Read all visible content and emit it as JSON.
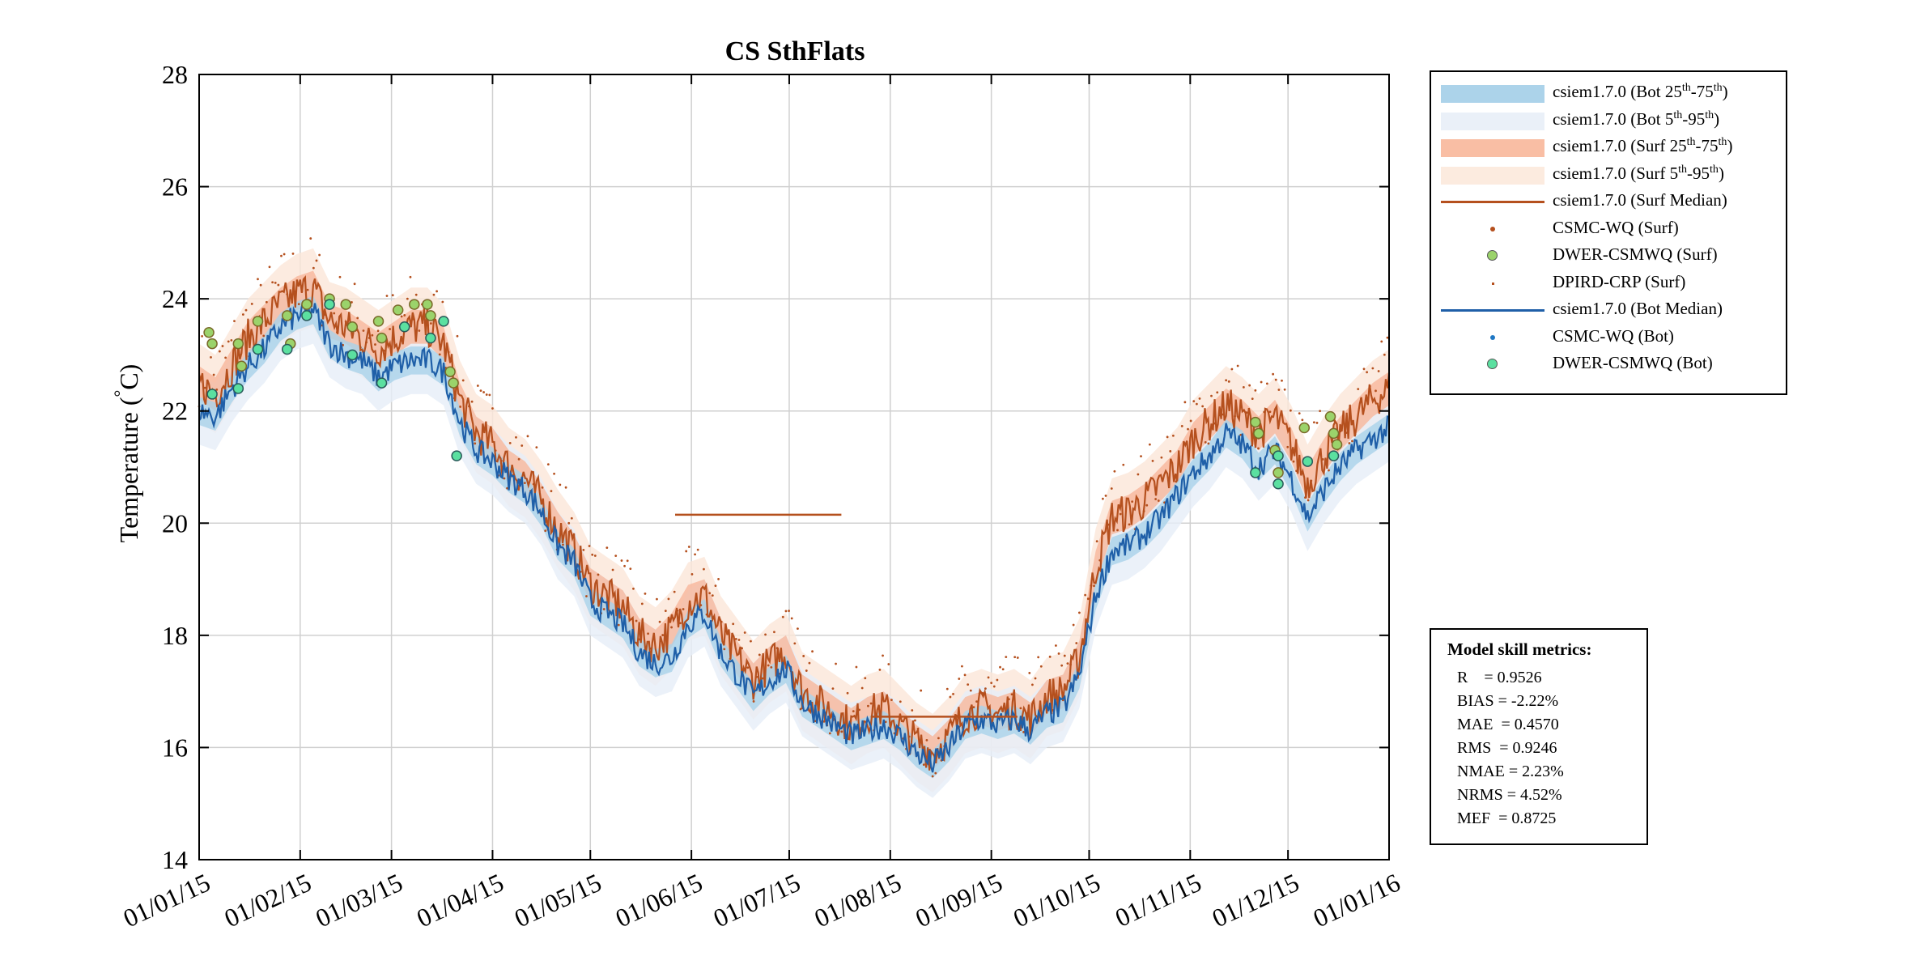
{
  "chart_data": {
    "type": "line",
    "title": "CS SthFlats",
    "xlabel": "",
    "ylabel": "Temperature (°C)",
    "ylabel_main": "Temperature (",
    "ylabel_deg": "°",
    "ylabel_unit": "C)",
    "ylim": [
      14,
      28
    ],
    "yticks": [
      "14",
      "16",
      "18",
      "20",
      "22",
      "24",
      "26",
      "28"
    ],
    "xticks": [
      "01/01/15",
      "01/02/15",
      "01/03/15",
      "01/04/15",
      "01/05/15",
      "01/06/15",
      "01/07/15",
      "01/08/15",
      "01/09/15",
      "01/10/15",
      "01/11/15",
      "01/12/15",
      "01/01/16"
    ],
    "grid": true,
    "month_days": [
      0,
      31,
      59,
      90,
      120,
      151,
      181,
      212,
      243,
      273,
      304,
      334,
      365
    ],
    "bottom_median": {
      "name": "csiem1.7.0 (Bot Median)",
      "color": "#1f5fa8",
      "days": [
        0,
        5,
        10,
        15,
        20,
        25,
        30,
        35,
        40,
        45,
        50,
        55,
        60,
        65,
        70,
        75,
        80,
        85,
        90,
        95,
        100,
        105,
        110,
        115,
        120,
        125,
        130,
        135,
        140,
        145,
        150,
        155,
        160,
        165,
        170,
        175,
        180,
        185,
        190,
        195,
        200,
        205,
        210,
        215,
        220,
        225,
        230,
        235,
        240,
        245,
        250,
        255,
        260,
        265,
        270,
        275,
        280,
        285,
        290,
        295,
        300,
        305,
        310,
        315,
        320,
        325,
        330,
        335,
        340,
        345,
        350,
        355,
        360,
        365
      ],
      "values": [
        22.0,
        21.9,
        22.4,
        22.8,
        23.1,
        23.5,
        23.7,
        23.8,
        23.2,
        23.0,
        22.9,
        22.6,
        22.8,
        22.9,
        22.9,
        22.7,
        21.8,
        21.3,
        21.1,
        20.8,
        20.6,
        20.2,
        19.6,
        19.3,
        18.6,
        18.4,
        18.2,
        17.7,
        17.5,
        17.6,
        18.2,
        18.4,
        17.7,
        17.3,
        16.9,
        17.2,
        17.4,
        16.8,
        16.6,
        16.4,
        16.2,
        16.3,
        16.4,
        16.2,
        15.9,
        15.7,
        16.0,
        16.4,
        16.5,
        16.4,
        16.5,
        16.3,
        16.6,
        16.7,
        17.3,
        18.7,
        19.5,
        19.6,
        19.8,
        20.1,
        20.5,
        20.9,
        21.2,
        21.6,
        21.4,
        21.0,
        21.3,
        20.8,
        20.1,
        20.6,
        21.0,
        21.3,
        21.5,
        21.7
      ]
    },
    "surface_median": {
      "name": "csiem1.7.0 (Surf Median)",
      "color": "#b5501e",
      "days": [
        0,
        5,
        10,
        15,
        20,
        25,
        30,
        35,
        40,
        45,
        50,
        55,
        60,
        65,
        70,
        75,
        80,
        85,
        90,
        95,
        100,
        105,
        110,
        115,
        120,
        125,
        130,
        135,
        140,
        145,
        150,
        155,
        160,
        165,
        170,
        175,
        180,
        185,
        190,
        195,
        200,
        205,
        210,
        215,
        220,
        225,
        230,
        235,
        240,
        245,
        250,
        255,
        260,
        265,
        270,
        275,
        280,
        285,
        290,
        295,
        300,
        305,
        310,
        315,
        320,
        325,
        330,
        335,
        340,
        345,
        350,
        355,
        360,
        365
      ],
      "values": [
        22.5,
        22.3,
        22.8,
        23.3,
        23.6,
        23.9,
        24.1,
        24.2,
        23.6,
        23.5,
        23.3,
        23.1,
        23.3,
        23.5,
        23.5,
        23.2,
        22.2,
        21.6,
        21.4,
        21.0,
        20.8,
        20.4,
        19.9,
        19.5,
        18.9,
        18.7,
        18.5,
        18.0,
        17.8,
        18.1,
        18.6,
        18.7,
        18.0,
        17.6,
        17.2,
        17.5,
        17.7,
        17.0,
        16.8,
        16.6,
        16.4,
        16.6,
        16.7,
        16.4,
        16.1,
        15.9,
        16.2,
        16.6,
        16.7,
        16.6,
        16.7,
        16.5,
        16.9,
        17.0,
        17.6,
        19.2,
        20.1,
        20.2,
        20.4,
        20.7,
        21.0,
        21.5,
        21.8,
        22.1,
        21.9,
        21.6,
        21.9,
        21.4,
        20.7,
        21.2,
        21.6,
        21.9,
        22.2,
        22.4
      ],
      "flat_segments": [
        {
          "days": [
            146,
            197
          ],
          "value": 20.15
        },
        {
          "days": [
            206,
            251
          ],
          "value": 16.55
        }
      ]
    },
    "dwer_surf": {
      "name": "DWER-CSMWQ (Surf)",
      "color": "#9bd36b",
      "points": [
        [
          3,
          23.4
        ],
        [
          4,
          23.2
        ],
        [
          12,
          23.2
        ],
        [
          13,
          22.8
        ],
        [
          18,
          23.6
        ],
        [
          27,
          23.7
        ],
        [
          28,
          23.2
        ],
        [
          33,
          23.9
        ],
        [
          40,
          24.0
        ],
        [
          45,
          23.9
        ],
        [
          47,
          23.5
        ],
        [
          55,
          23.6
        ],
        [
          56,
          23.3
        ],
        [
          61,
          23.8
        ],
        [
          66,
          23.9
        ],
        [
          70,
          23.9
        ],
        [
          71,
          23.7
        ],
        [
          77,
          22.7
        ],
        [
          78,
          22.5
        ],
        [
          324,
          21.8
        ],
        [
          325,
          21.6
        ],
        [
          330,
          21.3
        ],
        [
          331,
          20.9
        ],
        [
          339,
          21.7
        ],
        [
          347,
          21.9
        ],
        [
          348,
          21.6
        ],
        [
          349,
          21.4
        ]
      ]
    },
    "dwer_bot": {
      "name": "DWER-CSMWQ (Bot)",
      "color": "#5be0a0",
      "points": [
        [
          4,
          22.3
        ],
        [
          12,
          22.4
        ],
        [
          18,
          23.1
        ],
        [
          27,
          23.1
        ],
        [
          33,
          23.7
        ],
        [
          40,
          23.9
        ],
        [
          47,
          23.0
        ],
        [
          56,
          22.5
        ],
        [
          63,
          23.5
        ],
        [
          71,
          23.3
        ],
        [
          75,
          23.6
        ],
        [
          79,
          21.2
        ],
        [
          324,
          20.9
        ],
        [
          331,
          20.7
        ],
        [
          331,
          21.2
        ],
        [
          340,
          21.1
        ],
        [
          348,
          21.2
        ]
      ]
    },
    "bands": {
      "bot_25_75": {
        "color": "#a9d2ea"
      },
      "bot_5_95": {
        "color": "#e6eef8"
      },
      "surf_25_75": {
        "color": "#f7b69b"
      },
      "surf_5_95": {
        "color": "#fbe6d8"
      }
    }
  },
  "legend": {
    "items": [
      {
        "label": "csiem1.7.0 (Bot 25",
        "sup1": "th",
        "mid": "-75",
        "sup2": "th",
        "end": ")",
        "kind": "band",
        "color": "#acd3ea"
      },
      {
        "label": "csiem1.7.0 (Bot 5",
        "sup1": "th",
        "mid": "-95",
        "sup2": "th",
        "end": ")",
        "kind": "band",
        "color": "#eaf0f8"
      },
      {
        "label": "csiem1.7.0 (Surf 25",
        "sup1": "th",
        "mid": "-75",
        "sup2": "th",
        "end": ")",
        "kind": "band",
        "color": "#f9bea4"
      },
      {
        "label": "csiem1.7.0 (Surf 5",
        "sup1": "th",
        "mid": "-95",
        "sup2": "th",
        "end": ")",
        "kind": "band",
        "color": "#fcebdf"
      },
      {
        "label": "csiem1.7.0 (Surf Median)",
        "sup1": "",
        "mid": "",
        "sup2": "",
        "end": "",
        "kind": "line",
        "color": "#b5501e"
      },
      {
        "label": "CSMC-WQ (Surf)",
        "sup1": "",
        "mid": "",
        "sup2": "",
        "end": "",
        "kind": "dot",
        "color": "#b5501e"
      },
      {
        "label": "DWER-CSMWQ (Surf)",
        "sup1": "",
        "mid": "",
        "sup2": "",
        "end": "",
        "kind": "circle",
        "color": "#9bd36b"
      },
      {
        "label": "DPIRD-CRP (Surf)",
        "sup1": "",
        "mid": "",
        "sup2": "",
        "end": "",
        "kind": "tiny",
        "color": "#b5501e"
      },
      {
        "label": "csiem1.7.0 (Bot Median)",
        "sup1": "",
        "mid": "",
        "sup2": "",
        "end": "",
        "kind": "line",
        "color": "#1f5fa8"
      },
      {
        "label": "CSMC-WQ (Bot)",
        "sup1": "",
        "mid": "",
        "sup2": "",
        "end": "",
        "kind": "dot",
        "color": "#1f77c4"
      },
      {
        "label": "DWER-CSMWQ (Bot)",
        "sup1": "",
        "mid": "",
        "sup2": "",
        "end": "",
        "kind": "circle",
        "color": "#5be0a0"
      }
    ]
  },
  "skill": {
    "title": "Model skill metrics:",
    "lines": [
      "R    = 0.9526",
      "BIAS = -2.22%",
      "MAE  = 0.4570",
      "RMS  = 0.9246",
      "NMAE = 2.23%",
      "NRMS = 4.52%",
      "MEF  = 0.8725"
    ]
  }
}
